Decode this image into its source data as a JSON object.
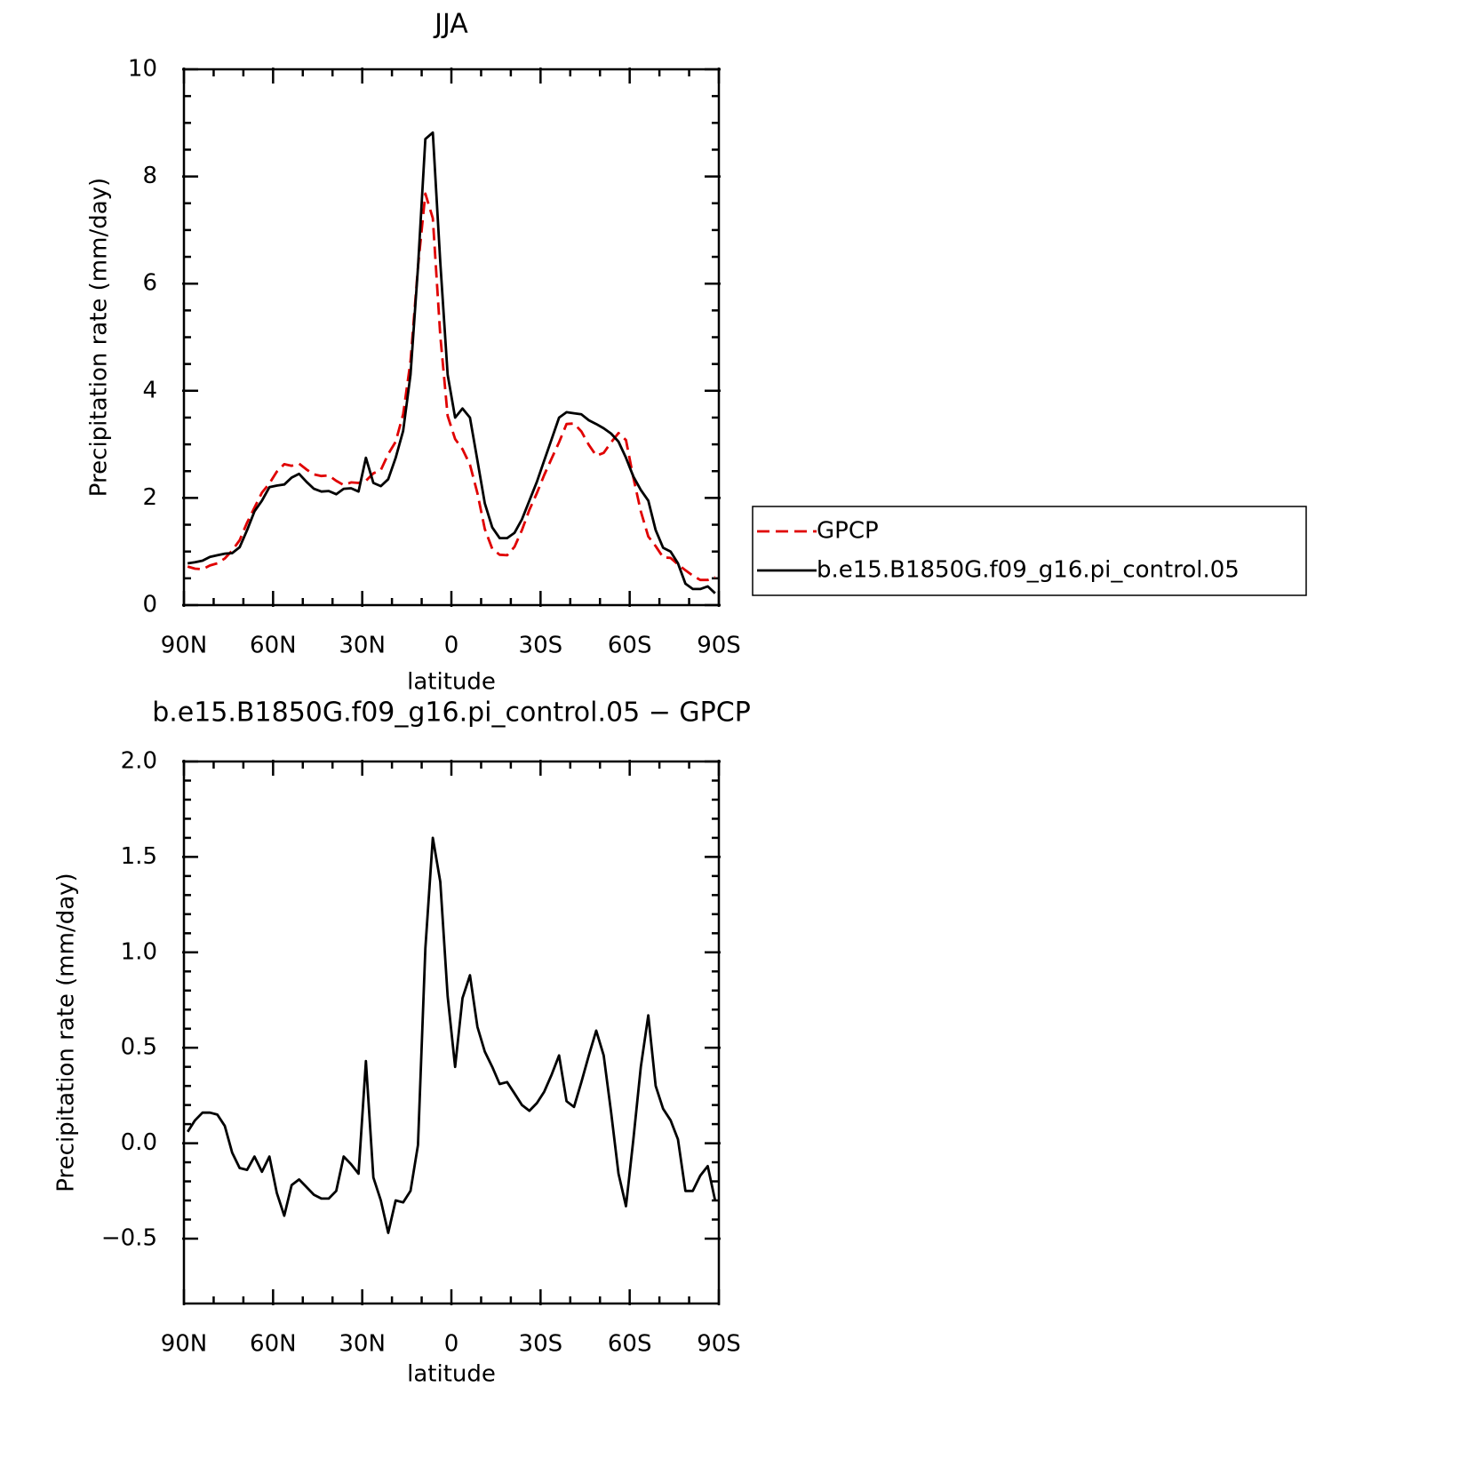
{
  "chart_data": [
    {
      "type": "line",
      "title": "JJA",
      "xlabel": "latitude",
      "ylabel": "Precipitation rate (mm/day)",
      "x": [
        88.75,
        86.25,
        83.75,
        81.25,
        78.75,
        76.25,
        73.75,
        71.25,
        68.75,
        66.25,
        63.75,
        61.25,
        58.75,
        56.25,
        53.75,
        51.25,
        48.75,
        46.25,
        43.75,
        41.25,
        38.75,
        36.25,
        33.75,
        31.25,
        28.75,
        26.25,
        23.75,
        21.25,
        18.75,
        16.25,
        13.75,
        11.25,
        8.75,
        6.25,
        3.75,
        1.25,
        -1.25,
        -3.75,
        -6.25,
        -8.75,
        -11.25,
        -13.75,
        -16.25,
        -18.75,
        -21.25,
        -23.75,
        -26.25,
        -28.75,
        -31.25,
        -33.75,
        -36.25,
        -38.75,
        -41.25,
        -43.75,
        -46.25,
        -48.75,
        -51.25,
        -53.75,
        -56.25,
        -58.75,
        -61.25,
        -63.75,
        -66.25,
        -68.75,
        -71.25,
        -73.75,
        -76.25,
        -78.75,
        -81.25,
        -83.75,
        -86.25,
        -88.75
      ],
      "series": [
        {
          "name": "GPCP",
          "color": "#e00000",
          "style": "dashed",
          "values": [
            0.72,
            0.68,
            0.67,
            0.74,
            0.78,
            0.87,
            1.02,
            1.21,
            1.54,
            1.82,
            2.1,
            2.27,
            2.49,
            2.63,
            2.6,
            2.64,
            2.53,
            2.44,
            2.41,
            2.42,
            2.32,
            2.24,
            2.29,
            2.28,
            2.32,
            2.46,
            2.52,
            2.82,
            3.05,
            3.56,
            4.55,
            6.31,
            7.68,
            7.22,
            5.03,
            3.53,
            3.1,
            2.91,
            2.62,
            2.09,
            1.42,
            1.05,
            0.94,
            0.93,
            1.09,
            1.4,
            1.78,
            2.09,
            2.43,
            2.74,
            3.04,
            3.38,
            3.39,
            3.24,
            2.99,
            2.79,
            2.84,
            3.04,
            3.21,
            3.08,
            2.38,
            1.75,
            1.28,
            1.1,
            0.89,
            0.88,
            0.76,
            0.65,
            0.55,
            0.47,
            0.47,
            0.52
          ]
        },
        {
          "name": "b.e15.B1850G.f09_g16.pi_control.05",
          "color": "#000000",
          "style": "solid",
          "values": [
            0.78,
            0.8,
            0.83,
            0.9,
            0.93,
            0.96,
            0.97,
            1.08,
            1.4,
            1.75,
            1.95,
            2.2,
            2.23,
            2.25,
            2.38,
            2.45,
            2.3,
            2.17,
            2.12,
            2.13,
            2.07,
            2.17,
            2.18,
            2.12,
            2.75,
            2.28,
            2.22,
            2.35,
            2.75,
            3.25,
            4.3,
            6.3,
            8.7,
            8.82,
            6.4,
            4.3,
            3.5,
            3.67,
            3.5,
            2.7,
            1.9,
            1.45,
            1.25,
            1.25,
            1.35,
            1.6,
            1.95,
            2.3,
            2.7,
            3.1,
            3.5,
            3.6,
            3.58,
            3.56,
            3.45,
            3.38,
            3.3,
            3.2,
            3.05,
            2.75,
            2.4,
            2.15,
            1.95,
            1.4,
            1.07,
            1.0,
            0.78,
            0.4,
            0.3,
            0.3,
            0.35,
            0.22
          ]
        }
      ],
      "xlim": [
        90,
        -90
      ],
      "xticks": [
        {
          "value": 90,
          "label": "90N"
        },
        {
          "value": 60,
          "label": "60N"
        },
        {
          "value": 30,
          "label": "30N"
        },
        0,
        {
          "value": -30,
          "label": "30S"
        },
        {
          "value": -60,
          "label": "60S"
        },
        {
          "value": -90,
          "label": "90S"
        }
      ],
      "ylim": [
        0,
        10
      ],
      "yticks": [
        0,
        2,
        4,
        6,
        8,
        10
      ]
    },
    {
      "type": "line",
      "title": "b.e15.B1850G.f09_g16.pi_control.05 − GPCP",
      "xlabel": "latitude",
      "ylabel": "Precipitation rate (mm/day)",
      "x": [
        88.75,
        86.25,
        83.75,
        81.25,
        78.75,
        76.25,
        73.75,
        71.25,
        68.75,
        66.25,
        63.75,
        61.25,
        58.75,
        56.25,
        53.75,
        51.25,
        48.75,
        46.25,
        43.75,
        41.25,
        38.75,
        36.25,
        33.75,
        31.25,
        28.75,
        26.25,
        23.75,
        21.25,
        18.75,
        16.25,
        13.75,
        11.25,
        8.75,
        6.25,
        3.75,
        1.25,
        -1.25,
        -3.75,
        -6.25,
        -8.75,
        -11.25,
        -13.75,
        -16.25,
        -18.75,
        -21.25,
        -23.75,
        -26.25,
        -28.75,
        -31.25,
        -33.75,
        -36.25,
        -38.75,
        -41.25,
        -43.75,
        -46.25,
        -48.75,
        -51.25,
        -53.75,
        -56.25,
        -58.75,
        -61.25,
        -63.75,
        -66.25,
        -68.75,
        -71.25,
        -73.75,
        -76.25,
        -78.75,
        -81.25,
        -83.75,
        -86.25,
        -88.75
      ],
      "color": "#000000",
      "values": [
        0.06,
        0.12,
        0.16,
        0.16,
        0.15,
        0.09,
        -0.05,
        -0.13,
        -0.14,
        -0.07,
        -0.15,
        -0.07,
        -0.26,
        -0.38,
        -0.22,
        -0.19,
        -0.23,
        -0.27,
        -0.29,
        -0.29,
        -0.25,
        -0.07,
        -0.11,
        -0.16,
        0.43,
        -0.18,
        -0.3,
        -0.47,
        -0.3,
        -0.31,
        -0.25,
        -0.01,
        1.02,
        1.6,
        1.37,
        0.77,
        0.4,
        0.76,
        0.88,
        0.61,
        0.48,
        0.4,
        0.31,
        0.32,
        0.26,
        0.2,
        0.17,
        0.21,
        0.27,
        0.36,
        0.46,
        0.22,
        0.19,
        0.32,
        0.46,
        0.59,
        0.46,
        0.16,
        -0.16,
        -0.33,
        0.02,
        0.4,
        0.67,
        0.3,
        0.18,
        0.12,
        0.02,
        -0.25,
        -0.25,
        -0.17,
        -0.12,
        -0.3
      ],
      "xlim": [
        90,
        -90
      ],
      "xticks": [
        {
          "value": 90,
          "label": "90N"
        },
        {
          "value": 60,
          "label": "60N"
        },
        {
          "value": 30,
          "label": "30N"
        },
        0,
        {
          "value": -30,
          "label": "30S"
        },
        {
          "value": -60,
          "label": "60S"
        },
        {
          "value": -90,
          "label": "90S"
        }
      ],
      "ylim": [
        -0.84,
        2
      ],
      "yticks": [
        {
          "value": -0.5,
          "label": "−0.5"
        },
        {
          "value": 0,
          "label": "0.0"
        },
        0.5,
        {
          "value": 1,
          "label": "1.0"
        },
        1.5,
        {
          "value": 2,
          "label": "2.0"
        }
      ]
    }
  ]
}
